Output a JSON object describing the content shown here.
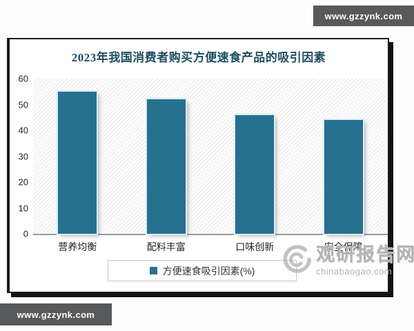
{
  "watermarks": {
    "top_right": "www.gzzynk.com",
    "bottom_left": "www.gzzynk.com",
    "brand_name": "观研报告网",
    "brand_site": "chinabaogao.com"
  },
  "chart_data": {
    "type": "bar",
    "title": "2023年我国消费者购买方便速食产品的吸引因素",
    "categories": [
      "营养均衡",
      "配料丰富",
      "口味创新",
      "安全保障"
    ],
    "values": [
      55,
      52,
      46,
      44
    ],
    "ylim": [
      0,
      60
    ],
    "yticks": [
      0,
      10,
      20,
      30,
      40,
      50,
      60
    ],
    "legend": [
      "方便速食吸引因素(%)"
    ],
    "legend_position": "bottom",
    "grid": false,
    "bar_color": "#26718F",
    "title_color": "#1D4E61",
    "ylabel": "",
    "xlabel": ""
  }
}
